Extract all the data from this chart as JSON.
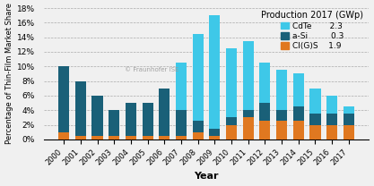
{
  "years": [
    2000,
    2001,
    2002,
    2003,
    2004,
    2005,
    2006,
    2007,
    2008,
    2009,
    2010,
    2011,
    2012,
    2013,
    2014,
    2015,
    2016,
    2017
  ],
  "CdTe": [
    0.0,
    0.0,
    0.0,
    0.0,
    0.0,
    0.0,
    0.0,
    6.5,
    12.0,
    15.5,
    9.5,
    9.5,
    5.5,
    5.5,
    4.5,
    3.5,
    2.5,
    1.0
  ],
  "aSi": [
    9.0,
    7.5,
    5.5,
    3.5,
    4.5,
    4.5,
    6.5,
    3.5,
    1.5,
    1.0,
    1.0,
    1.0,
    2.5,
    1.5,
    2.0,
    1.5,
    1.5,
    1.5
  ],
  "CIGS": [
    1.0,
    0.5,
    0.5,
    0.5,
    0.5,
    0.5,
    0.5,
    0.5,
    1.0,
    0.5,
    2.0,
    3.0,
    2.5,
    2.5,
    2.5,
    2.0,
    2.0,
    2.0
  ],
  "CdTe_color": "#3ec8e8",
  "aSi_color": "#1a6078",
  "CIGS_color": "#e07820",
  "background_color": "#f0f0f0",
  "plot_background": "#e8e8e8",
  "ylabel": "Percentage of Thin-Film Market Share",
  "xlabel": "Year",
  "legend_title": "Production 2017 (GWp)",
  "ylim": [
    0,
    18
  ],
  "yticks": [
    0,
    2,
    4,
    6,
    8,
    10,
    12,
    14,
    16,
    18
  ],
  "ytick_labels": [
    "0%",
    "2%",
    "4%",
    "6%",
    "8%",
    "10%",
    "12%",
    "14%",
    "16%",
    "18%"
  ],
  "watermark": "© Fraunhofer ISE"
}
